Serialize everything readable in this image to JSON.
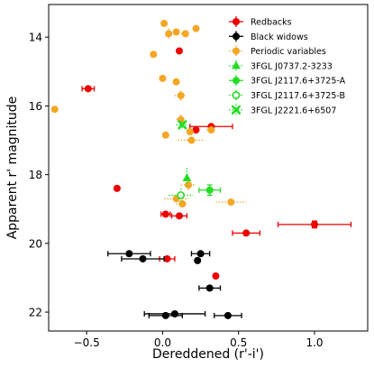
{
  "chart_data": {
    "type": "scatter",
    "xlabel": "Dereddened (r'-i')",
    "ylabel": "Apparent r' magnitude",
    "xlim": [
      -0.75,
      1.35
    ],
    "ylim": [
      22.55,
      13.05
    ],
    "y_inverted": true,
    "xticks": [
      -0.5,
      0.0,
      0.5,
      1.0
    ],
    "xtick_labels": [
      "−0.5",
      "0.0",
      "0.5",
      "1.0"
    ],
    "yticks": [
      14,
      16,
      18,
      20,
      22
    ],
    "ytick_labels": [
      "14",
      "16",
      "18",
      "20",
      "22"
    ],
    "grid": false,
    "legend_position": "top-right",
    "colors": {
      "redbacks": "#ee0000",
      "black_widows": "#000000",
      "periodic": "#f5a623",
      "fgl": "#22dd22"
    },
    "series": [
      {
        "name": "Redbacks",
        "marker": "circle",
        "color": "#ee0000",
        "errorbar_style": "solid",
        "points": [
          {
            "x": 0.11,
            "y": 14.4,
            "xerr": 0.0,
            "yerr": 0.0
          },
          {
            "x": -0.49,
            "y": 15.5,
            "xerr": 0.04,
            "yerr": 0.0
          },
          {
            "x": 0.22,
            "y": 16.7,
            "xerr": 0.0,
            "yerr": 0.0
          },
          {
            "x": 0.32,
            "y": 16.6,
            "xerr": 0.14,
            "yerr": 0.0
          },
          {
            "x": -0.3,
            "y": 18.4,
            "xerr": 0.0,
            "yerr": 0.0
          },
          {
            "x": 0.02,
            "y": 19.15,
            "xerr": 0.03,
            "yerr": 0.0
          },
          {
            "x": 0.11,
            "y": 19.2,
            "xerr": 0.05,
            "yerr": 0.0
          },
          {
            "x": 0.55,
            "y": 19.7,
            "xerr": 0.09,
            "yerr": 0.0
          },
          {
            "x": 1.0,
            "y": 19.45,
            "xerr": 0.24,
            "yerr": 0.1
          },
          {
            "x": 0.03,
            "y": 20.45,
            "xerr": 0.05,
            "yerr": 0.0
          },
          {
            "x": 0.35,
            "y": 20.95,
            "xerr": 0.0,
            "yerr": 0.0
          }
        ]
      },
      {
        "name": "Black widows",
        "marker": "circle",
        "color": "#000000",
        "errorbar_style": "solid",
        "points": [
          {
            "x": -0.22,
            "y": 20.3,
            "xerr": 0.14,
            "yerr": 0.0
          },
          {
            "x": 0.25,
            "y": 20.3,
            "xerr": 0.06,
            "yerr": 0.0
          },
          {
            "x": -0.13,
            "y": 20.45,
            "xerr": 0.14,
            "yerr": 0.0
          },
          {
            "x": 0.23,
            "y": 20.5,
            "xerr": 0.0,
            "yerr": 0.0
          },
          {
            "x": 0.31,
            "y": 21.3,
            "xerr": 0.07,
            "yerr": 0.0
          },
          {
            "x": 0.08,
            "y": 22.05,
            "xerr": 0.2,
            "yerr": 0.0
          },
          {
            "x": 0.02,
            "y": 22.1,
            "xerr": 0.11,
            "yerr": 0.0
          },
          {
            "x": 0.43,
            "y": 22.1,
            "xerr": 0.09,
            "yerr": 0.0
          }
        ]
      },
      {
        "name": "Periodic variables",
        "marker": "circle",
        "color": "#f5a623",
        "errorbar_style": "dotted",
        "points": [
          {
            "x": 0.01,
            "y": 13.6,
            "xerr": 0.0,
            "yerr": 0.1
          },
          {
            "x": 0.22,
            "y": 13.75,
            "xerr": 0.0,
            "yerr": 0.0
          },
          {
            "x": 0.04,
            "y": 13.9,
            "xerr": 0.0,
            "yerr": 0.15
          },
          {
            "x": 0.09,
            "y": 13.85,
            "xerr": 0.0,
            "yerr": 0.0
          },
          {
            "x": 0.15,
            "y": 13.9,
            "xerr": 0.03,
            "yerr": 0.0
          },
          {
            "x": -0.06,
            "y": 14.5,
            "xerr": 0.0,
            "yerr": 0.0
          },
          {
            "x": 0.0,
            "y": 15.2,
            "xerr": 0.0,
            "yerr": 0.0
          },
          {
            "x": 0.09,
            "y": 15.3,
            "xerr": 0.0,
            "yerr": 0.1
          },
          {
            "x": 0.12,
            "y": 15.7,
            "xerr": 0.04,
            "yerr": 0.15
          },
          {
            "x": -0.71,
            "y": 16.1,
            "xerr": 0.0,
            "yerr": 0.0
          },
          {
            "x": 0.12,
            "y": 16.4,
            "xerr": 0.03,
            "yerr": 0.15
          },
          {
            "x": 0.18,
            "y": 16.75,
            "xerr": 0.0,
            "yerr": 0.0
          },
          {
            "x": 0.32,
            "y": 16.7,
            "xerr": 0.03,
            "yerr": 0.1
          },
          {
            "x": 0.02,
            "y": 16.85,
            "xerr": 0.0,
            "yerr": 0.1
          },
          {
            "x": 0.19,
            "y": 17.0,
            "xerr": 0.09,
            "yerr": 0.1
          },
          {
            "x": 0.17,
            "y": 18.3,
            "xerr": 0.05,
            "yerr": 0.15
          },
          {
            "x": 0.09,
            "y": 18.7,
            "xerr": 0.08,
            "yerr": 0.1
          },
          {
            "x": 0.45,
            "y": 18.8,
            "xerr": 0.1,
            "yerr": 0.0
          },
          {
            "x": 0.13,
            "y": 18.85,
            "xerr": 0.04,
            "yerr": 0.1
          }
        ]
      },
      {
        "name": "3FGL J0737.2-3233",
        "marker": "triangle-up",
        "color": "#22dd22",
        "errorbar_style": "dotted",
        "points": [
          {
            "x": 0.16,
            "y": 18.1,
            "xerr": 0.0,
            "yerr": 0.3
          }
        ]
      },
      {
        "name": "3FGL J2117.6+3725-A",
        "marker": "circle",
        "color": "#22dd22",
        "errorbar_style": "solid",
        "points": [
          {
            "x": 0.31,
            "y": 18.45,
            "xerr": 0.07,
            "yerr": 0.15
          }
        ]
      },
      {
        "name": "3FGL J2117.6+3725-B",
        "marker": "circle-open",
        "color": "#22dd22",
        "errorbar_style": "dotted",
        "points": [
          {
            "x": 0.12,
            "y": 18.6,
            "xerr": 0.08,
            "yerr": 0.2
          }
        ]
      },
      {
        "name": "3FGL J2221.6+6507",
        "marker": "x-filled",
        "color": "#22dd22",
        "errorbar_style": "dotted",
        "points": [
          {
            "x": 0.13,
            "y": 16.55,
            "xerr": 0.04,
            "yerr": 0.1
          }
        ]
      }
    ]
  }
}
